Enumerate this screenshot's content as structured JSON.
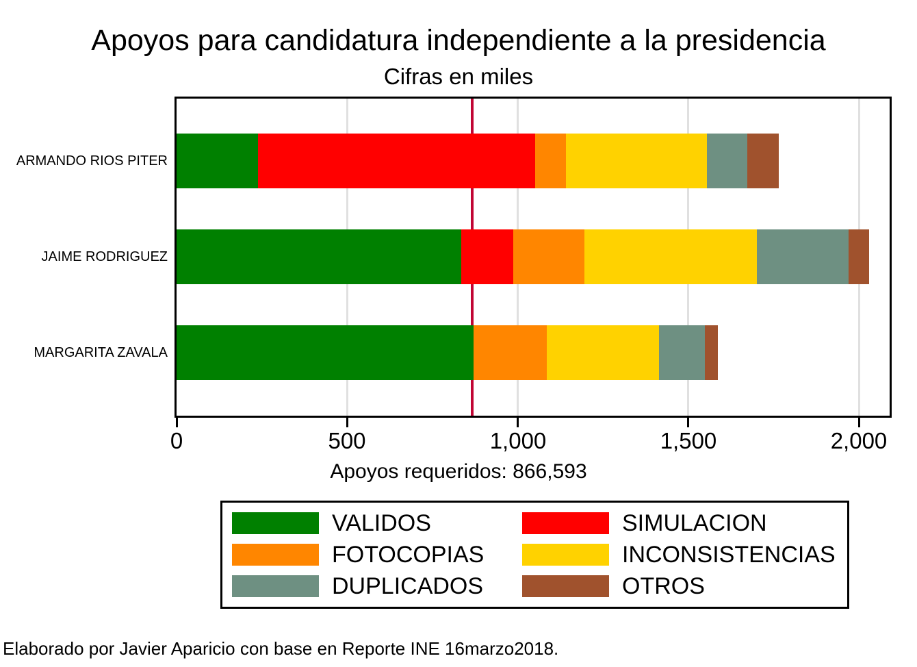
{
  "title": "Apoyos para candidatura independiente a la presidencia",
  "subtitle": "Cifras en miles",
  "footer": "Elaborado por Javier Aparicio con base en Reporte INE 16marzo2018.",
  "x_axis": {
    "title": "Apoyos requeridos: 866,593",
    "ticks": [
      {
        "label": "0",
        "value": 0
      },
      {
        "label": "500",
        "value": 500
      },
      {
        "label": "1,000",
        "value": 1000
      },
      {
        "label": "1,500",
        "value": 1500
      },
      {
        "label": "2,000",
        "value": 2000
      }
    ]
  },
  "requirement": {
    "label": "Apoyos requeridos: 866,593",
    "value_thousands": 866.593,
    "line_color": "#C10534"
  },
  "colors": {
    "gridline": "#E0E0E0",
    "axis": "#000000",
    "background": "#FFFFFF"
  },
  "legend": {
    "items": [
      {
        "label": "VALIDOS",
        "color": "#008000"
      },
      {
        "label": "SIMULACION",
        "color": "#FF0000"
      },
      {
        "label": "FOTOCOPIAS",
        "color": "#FF8600"
      },
      {
        "label": "INCONSISTENCIAS",
        "color": "#FFD200"
      },
      {
        "label": "DUPLICADOS",
        "color": "#6E9082"
      },
      {
        "label": "OTROS",
        "color": "#A0522D"
      }
    ]
  },
  "chart_data": {
    "type": "bar",
    "orientation": "horizontal",
    "stacked": true,
    "units": "miles (thousands of apoyos)",
    "title": "Apoyos para candidatura independiente a la presidencia",
    "subtitle": "Cifras en miles",
    "categories": [
      "ARMANDO RIOS PITER",
      "JAIME RODRIGUEZ",
      "MARGARITA ZAVALA"
    ],
    "series": [
      {
        "name": "VALIDOS",
        "color": "#008000",
        "values": [
          239,
          835,
          870
        ]
      },
      {
        "name": "SIMULACION",
        "color": "#FF0000",
        "values": [
          812,
          152,
          0
        ]
      },
      {
        "name": "FOTOCOPIAS",
        "color": "#FF8600",
        "values": [
          90,
          208,
          214
        ]
      },
      {
        "name": "INCONSISTENCIAS",
        "color": "#FFD200",
        "values": [
          414,
          506,
          328
        ]
      },
      {
        "name": "DUPLICADOS",
        "color": "#6E9082",
        "values": [
          119,
          269,
          134
        ]
      },
      {
        "name": "OTROS",
        "color": "#A0522D",
        "values": [
          92,
          60,
          38
        ]
      }
    ],
    "totals": [
      1766,
      2030,
      1584
    ],
    "xlim": [
      0,
      2090
    ],
    "gridlines_at": [
      500,
      1000,
      1500,
      2000
    ],
    "reference_line": 866.593,
    "legend_position": "bottom",
    "grid": true
  }
}
